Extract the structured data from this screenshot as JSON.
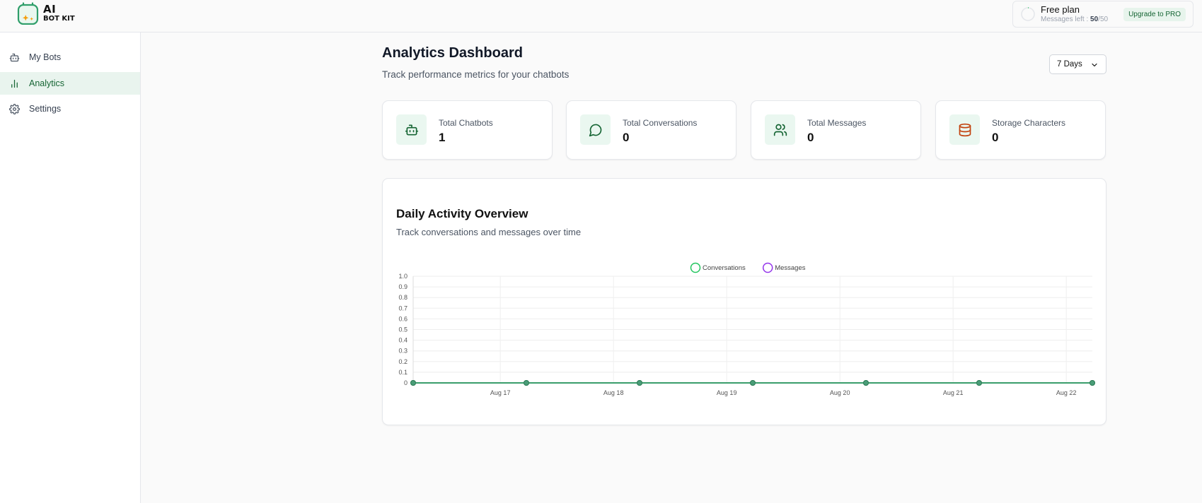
{
  "header": {
    "logo_line1": "AI",
    "logo_line2": "BOT KIT",
    "plan_name": "Free plan",
    "messages_label": "Messages left :",
    "messages_left": "50",
    "messages_total": "/50",
    "upgrade_label": "Upgrade to PRO"
  },
  "sidebar": {
    "items": [
      {
        "label": "My Bots",
        "icon": "bot-icon"
      },
      {
        "label": "Analytics",
        "icon": "bar-chart-icon",
        "active": true
      },
      {
        "label": "Settings",
        "icon": "gear-icon"
      }
    ]
  },
  "main": {
    "title": "Analytics Dashboard",
    "subtitle": "Track performance metrics for your chatbots",
    "range_value": "7 Days"
  },
  "stats": [
    {
      "label": "Total Chatbots",
      "value": "1",
      "icon": "bot-icon",
      "color": "#166534"
    },
    {
      "label": "Total Conversations",
      "value": "0",
      "icon": "message-circle-icon",
      "color": "#166534"
    },
    {
      "label": "Total Messages",
      "value": "0",
      "icon": "users-icon",
      "color": "#166534"
    },
    {
      "label": "Storage Characters",
      "value": "0",
      "icon": "database-icon",
      "color": "#c2410c"
    }
  ],
  "chart": {
    "title": "Daily Activity Overview",
    "subtitle": "Track conversations and messages over time"
  },
  "chart_data": {
    "type": "line",
    "x_tick_labels": [
      "Aug 17",
      "Aug 18",
      "Aug 19",
      "Aug 20",
      "Aug 21",
      "Aug 22"
    ],
    "y_tick_labels": [
      "0",
      "0.1",
      "0.2",
      "0.3",
      "0.4",
      "0.5",
      "0.6",
      "0.7",
      "0.8",
      "0.9",
      "1.0"
    ],
    "ylim": [
      0,
      1
    ],
    "grid": true,
    "legend_position": "top-center",
    "series": [
      {
        "name": "Conversations",
        "color": "#22c55e",
        "values": [
          0,
          0,
          0,
          0,
          0,
          0,
          0
        ]
      },
      {
        "name": "Messages",
        "color": "#9333ea",
        "values": [
          0,
          0,
          0,
          0,
          0,
          0,
          0
        ]
      }
    ],
    "line_color": "#3a9d6b"
  }
}
